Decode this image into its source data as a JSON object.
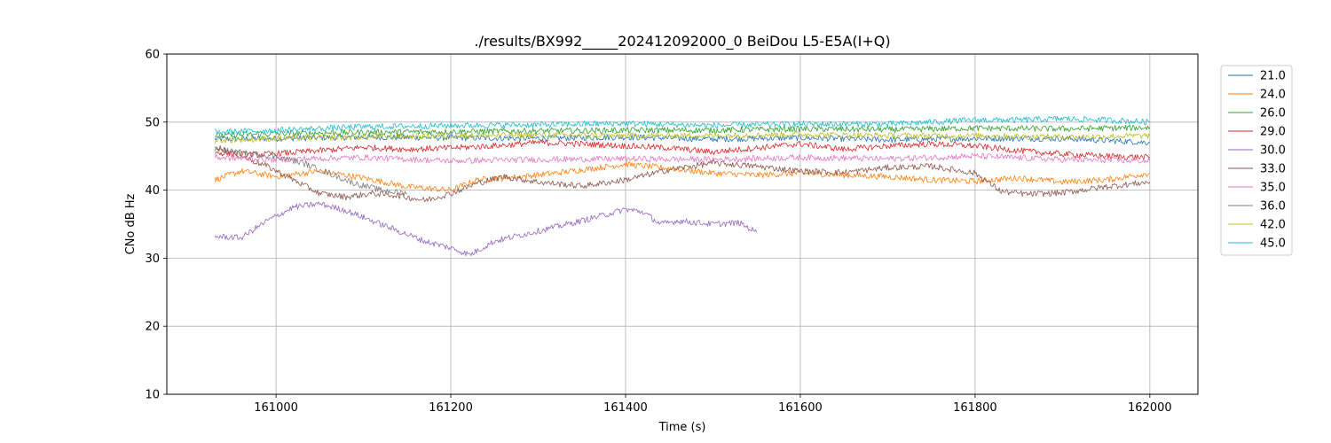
{
  "chart_data": {
    "type": "line",
    "title": "./results/BX992_____202412092000_0 BeiDou L5-E5A(I+Q)",
    "xlabel": "Time (s)",
    "ylabel": "CNo dB Hz",
    "xlim": [
      160875,
      162055
    ],
    "ylim": [
      10,
      60
    ],
    "xticks": [
      161000,
      161200,
      161400,
      161600,
      161800,
      162000
    ],
    "yticks": [
      10,
      20,
      30,
      40,
      50,
      60
    ],
    "grid": true,
    "legend_position": "outside-right",
    "series": [
      {
        "name": "21.0",
        "color": "#1f77b4",
        "x": [
          160930,
          161000,
          161100,
          161200,
          161300,
          161400,
          161500,
          161600,
          161700,
          161800,
          161900,
          162000
        ],
        "y": [
          47.5,
          47.6,
          47.8,
          47.7,
          47.6,
          47.8,
          47.5,
          47.7,
          47.4,
          47.6,
          47.6,
          47.0
        ]
      },
      {
        "name": "24.0",
        "color": "#ff7f0e",
        "x": [
          160930,
          160960,
          161000,
          161050,
          161100,
          161150,
          161180,
          161200,
          161230,
          161280,
          161320,
          161350,
          161400,
          161450,
          161500,
          161550,
          161600,
          161650,
          161700,
          161750,
          161800,
          161850,
          161900,
          161950,
          162000
        ],
        "y": [
          41.5,
          42.8,
          42.0,
          42.8,
          41.8,
          40.5,
          40.2,
          40.0,
          41.5,
          42.0,
          42.5,
          43.0,
          43.8,
          43.2,
          42.5,
          42.2,
          42.5,
          42.2,
          42.0,
          41.5,
          41.3,
          41.8,
          41.2,
          41.5,
          42.5
        ]
      },
      {
        "name": "26.0",
        "color": "#2ca02c",
        "x": [
          160930,
          161000,
          161100,
          161200,
          161300,
          161400,
          161500,
          161600,
          161700,
          161800,
          161900,
          162000
        ],
        "y": [
          48.0,
          48.3,
          48.5,
          48.6,
          48.7,
          48.8,
          48.8,
          49.0,
          48.9,
          49.1,
          49.0,
          49.2
        ]
      },
      {
        "name": "29.0",
        "color": "#d62728",
        "x": [
          160930,
          160980,
          161050,
          161100,
          161150,
          161200,
          161250,
          161300,
          161350,
          161400,
          161450,
          161500,
          161550,
          161600,
          161650,
          161700,
          161750,
          161800,
          161850,
          161900,
          161950,
          162000
        ],
        "y": [
          45.5,
          45.2,
          45.8,
          46.3,
          46.0,
          46.2,
          46.5,
          47.0,
          46.8,
          46.5,
          46.2,
          45.6,
          46.2,
          46.8,
          46.0,
          46.5,
          46.8,
          46.5,
          45.8,
          45.3,
          45.0,
          44.8
        ]
      },
      {
        "name": "30.0",
        "color": "#9467bd",
        "x": [
          160930,
          160960,
          160990,
          161020,
          161050,
          161080,
          161110,
          161140,
          161170,
          161200,
          161222,
          161250,
          161300,
          161350,
          161380,
          161400,
          161420,
          161440,
          161460,
          161500,
          161530,
          161550
        ],
        "y": [
          33.2,
          33.0,
          35.5,
          37.5,
          38.0,
          37.0,
          35.5,
          34.0,
          32.5,
          31.5,
          30.5,
          32.5,
          34.0,
          35.5,
          36.5,
          37.2,
          36.8,
          35.0,
          35.5,
          35.0,
          35.2,
          33.8
        ]
      },
      {
        "name": "33.0",
        "color": "#8c564b",
        "x": [
          160930,
          160960,
          160990,
          161020,
          161050,
          161080,
          161110,
          161140,
          161170,
          161200,
          161230,
          161260,
          161300,
          161350,
          161400,
          161450,
          161500,
          161550,
          161600,
          161650,
          161700,
          161750,
          161800,
          161830,
          161860,
          161900,
          161950,
          162000
        ],
        "y": [
          46.5,
          45.0,
          43.5,
          41.5,
          39.5,
          39.0,
          39.5,
          39.2,
          38.5,
          39.5,
          41.0,
          42.0,
          41.2,
          40.6,
          41.5,
          43.0,
          44.0,
          43.5,
          42.8,
          42.6,
          43.3,
          43.5,
          42.5,
          39.8,
          39.4,
          39.6,
          40.5,
          41.2
        ]
      },
      {
        "name": "35.0",
        "color": "#e377c2",
        "x": [
          160930,
          161000,
          161100,
          161200,
          161300,
          161400,
          161500,
          161600,
          161700,
          161800,
          161900,
          162000
        ],
        "y": [
          44.8,
          44.5,
          44.8,
          44.3,
          44.5,
          44.6,
          44.5,
          44.8,
          44.6,
          45.0,
          44.5,
          44.3
        ]
      },
      {
        "name": "36.0",
        "color": "#7f7f7f",
        "x": [
          160930,
          160960,
          161000,
          161030,
          161060,
          161090,
          161120,
          161150
        ],
        "y": [
          46.0,
          45.5,
          45.0,
          44.0,
          42.5,
          41.0,
          40.0,
          39.5
        ]
      },
      {
        "name": "42.0",
        "color": "#bcbd22",
        "x": [
          160930,
          161000,
          161100,
          161200,
          161300,
          161400,
          161500,
          161600,
          161700,
          161800,
          161900,
          162000
        ],
        "y": [
          47.3,
          47.6,
          47.8,
          48.0,
          48.1,
          48.0,
          48.0,
          48.2,
          48.0,
          48.0,
          47.8,
          48.0
        ]
      },
      {
        "name": "45.0",
        "color": "#17becf",
        "x": [
          160930,
          161000,
          161100,
          161200,
          161300,
          161400,
          161500,
          161600,
          161700,
          161800,
          161850,
          161900,
          161950,
          162000
        ],
        "y": [
          48.5,
          48.8,
          49.3,
          49.5,
          49.6,
          49.8,
          49.5,
          49.7,
          49.7,
          50.3,
          50.3,
          50.5,
          50.3,
          50.0
        ]
      }
    ]
  }
}
